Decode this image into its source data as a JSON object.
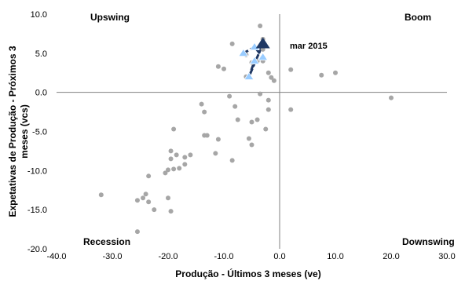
{
  "chart_data": {
    "type": "scatter",
    "title": "",
    "xlabel": "Produção - Últimos 3 meses (ve)",
    "ylabel": "Expetativas de Produção - Próximos 3 meses (vcs)",
    "xlim": [
      -40,
      30
    ],
    "ylim": [
      -20,
      10
    ],
    "x_ticks": [
      "-40.0",
      "-30.0",
      "-20.0",
      "-10.0",
      "0.0",
      "10.0",
      "20.0",
      "30.0"
    ],
    "y_ticks": [
      "10.0",
      "5.0",
      "0.0",
      "-5.0",
      "-10.0",
      "-15.0",
      "-20.0"
    ],
    "quadrant_labels": {
      "top_left": "Upswing",
      "top_right": "Boom",
      "bottom_left": "Recession",
      "bottom_right": "Downswing"
    },
    "annotation": "mar 2015",
    "grid": false,
    "colors": {
      "history": "#a6a6a6",
      "recent": "#99ccff",
      "recent_edge": "#ffffff",
      "latest": "#1f3864",
      "path": "#1f3864",
      "axis": "#808080"
    },
    "series": [
      {
        "role": "history",
        "marker": "circle",
        "points": [
          [
            -3.5,
            8.5
          ],
          [
            -8.5,
            6.2
          ],
          [
            -3.0,
            6.8
          ],
          [
            -3.0,
            5.5
          ],
          [
            -6.0,
            4.8
          ],
          [
            -4.0,
            4.0
          ],
          [
            -3.0,
            4.0
          ],
          [
            -5.0,
            3.8
          ],
          [
            -10.0,
            3.0
          ],
          [
            -11.0,
            3.3
          ],
          [
            -6.0,
            2.0
          ],
          [
            -2.0,
            2.5
          ],
          [
            -1.5,
            1.9
          ],
          [
            -1.0,
            1.5
          ],
          [
            2.0,
            2.9
          ],
          [
            7.5,
            2.2
          ],
          [
            10.0,
            2.5
          ],
          [
            -9.0,
            -0.5
          ],
          [
            -3.5,
            -0.2
          ],
          [
            -2.0,
            -1.0
          ],
          [
            -2.0,
            -2.2
          ],
          [
            2.0,
            -2.2
          ],
          [
            20.0,
            -0.7
          ],
          [
            -14.0,
            -1.5
          ],
          [
            -13.5,
            -2.5
          ],
          [
            -8.0,
            -1.8
          ],
          [
            -7.5,
            -3.5
          ],
          [
            -4.0,
            -3.5
          ],
          [
            -5.0,
            -3.8
          ],
          [
            -2.5,
            -4.7
          ],
          [
            -5.5,
            -5.9
          ],
          [
            -5.0,
            -6.7
          ],
          [
            -13.0,
            -5.5
          ],
          [
            -13.5,
            -5.5
          ],
          [
            -19.0,
            -4.7
          ],
          [
            -11.0,
            -6.0
          ],
          [
            -16.0,
            -8.0
          ],
          [
            -11.5,
            -7.8
          ],
          [
            -8.5,
            -8.7
          ],
          [
            -19.5,
            -7.5
          ],
          [
            -18.5,
            -8.0
          ],
          [
            -17.0,
            -8.3
          ],
          [
            -19.5,
            -8.5
          ],
          [
            -17.0,
            -9.2
          ],
          [
            -18.0,
            -9.7
          ],
          [
            -19.0,
            -9.8
          ],
          [
            -20.0,
            -9.9
          ],
          [
            -20.5,
            -10.3
          ],
          [
            -23.5,
            -10.7
          ],
          [
            -24.0,
            -13.0
          ],
          [
            -24.5,
            -13.5
          ],
          [
            -25.5,
            -13.8
          ],
          [
            -23.5,
            -14.0
          ],
          [
            -20.0,
            -13.5
          ],
          [
            -22.5,
            -15.0
          ],
          [
            -19.5,
            -15.2
          ],
          [
            -32.0,
            -13.1
          ],
          [
            -25.5,
            -17.8
          ]
        ]
      },
      {
        "role": "recent",
        "marker": "triangle",
        "points": [
          [
            -6.5,
            5.0
          ],
          [
            -4.5,
            5.8
          ],
          [
            -3.0,
            4.5
          ],
          [
            -4.5,
            4.0
          ],
          [
            -5.5,
            2.0
          ]
        ]
      },
      {
        "role": "latest",
        "label": "mar 2015",
        "marker": "triangle",
        "points": [
          [
            -3.0,
            6.2
          ]
        ]
      }
    ],
    "path": [
      [
        -6.5,
        5.0
      ],
      [
        -4.5,
        5.8
      ],
      [
        -3.0,
        4.5
      ],
      [
        -4.5,
        4.0
      ],
      [
        -5.5,
        2.0
      ],
      [
        -3.0,
        6.2
      ]
    ]
  }
}
